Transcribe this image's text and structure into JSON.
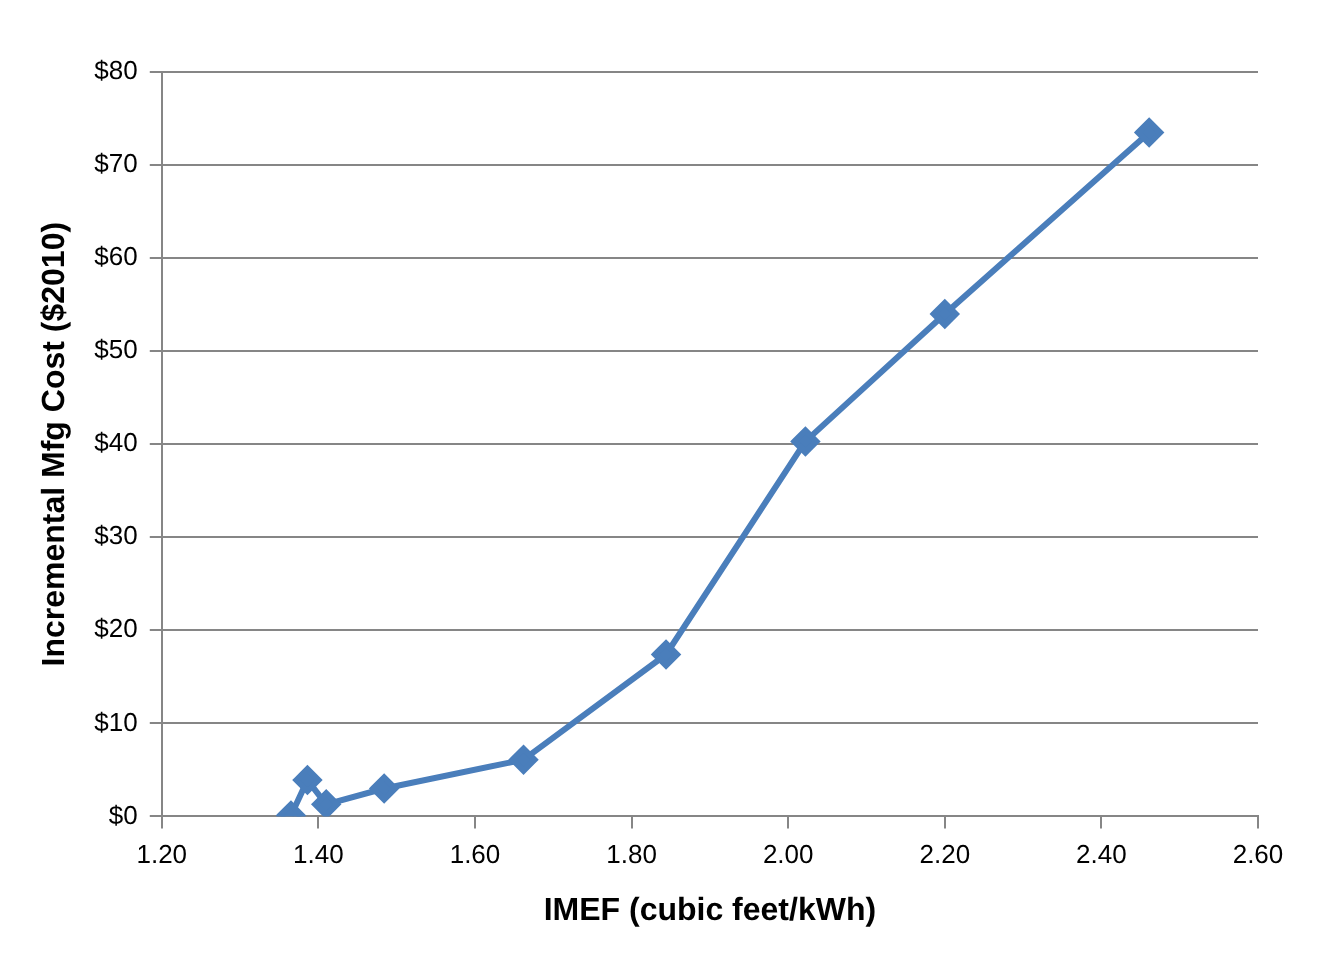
{
  "chart_data": {
    "type": "line",
    "xlabel": "IMEF (cubic feet/kWh)",
    "ylabel": "Incremental Mfg Cost ($2010)",
    "x": [
      1.365,
      1.386,
      1.41,
      1.484,
      1.662,
      1.844,
      2.022,
      2.2,
      2.461
    ],
    "series": [
      {
        "color": "#4a7ebb",
        "values": [
          0.1,
          3.9,
          1.3,
          3.0,
          6.1,
          17.4,
          40.3,
          54.0,
          73.5
        ]
      }
    ],
    "xlim": [
      1.2,
      2.6
    ],
    "ylim": [
      0,
      80
    ],
    "xticks": [
      {
        "value": 1.2,
        "label": "1.20"
      },
      {
        "value": 1.4,
        "label": "1.40"
      },
      {
        "value": 1.6,
        "label": "1.60"
      },
      {
        "value": 1.8,
        "label": "1.80"
      },
      {
        "value": 2.0,
        "label": "2.00"
      },
      {
        "value": 2.2,
        "label": "2.20"
      },
      {
        "value": 2.4,
        "label": "2.40"
      },
      {
        "value": 2.6,
        "label": "2.60"
      }
    ],
    "yticks": [
      {
        "value": 0,
        "label": "$0"
      },
      {
        "value": 10,
        "label": "$10"
      },
      {
        "value": 20,
        "label": "$20"
      },
      {
        "value": 30,
        "label": "$30"
      },
      {
        "value": 40,
        "label": "$40"
      },
      {
        "value": 50,
        "label": "$50"
      },
      {
        "value": 60,
        "label": "$60"
      },
      {
        "value": 70,
        "label": "$70"
      },
      {
        "value": 80,
        "label": "$80"
      }
    ],
    "grid": "y",
    "legend": false,
    "marker": "diamond",
    "line_style": "solid"
  }
}
